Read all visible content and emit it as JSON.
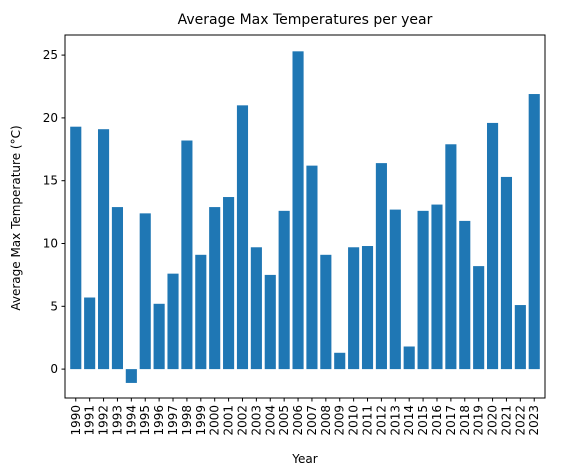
{
  "chart_data": {
    "type": "bar",
    "title": "Average Max Temperatures per year",
    "xlabel": "Year",
    "ylabel": "Average Max Temperature (°C)",
    "ylim": [
      -2.3,
      26.6
    ],
    "yticks": [
      0,
      5,
      10,
      15,
      20,
      25
    ],
    "grid": false,
    "bar_color": "#1f77b4",
    "categories": [
      "1990",
      "1991",
      "1992",
      "1993",
      "1994",
      "1995",
      "1996",
      "1997",
      "1998",
      "1999",
      "2000",
      "2001",
      "2002",
      "2003",
      "2004",
      "2005",
      "2006",
      "2007",
      "2008",
      "2009",
      "2010",
      "2011",
      "2012",
      "2013",
      "2014",
      "2015",
      "2016",
      "2017",
      "2018",
      "2019",
      "2020",
      "2021",
      "2022",
      "2023"
    ],
    "values": [
      19.3,
      5.7,
      19.1,
      12.9,
      -1.1,
      12.4,
      5.2,
      7.6,
      18.2,
      9.1,
      12.9,
      13.7,
      21.0,
      9.7,
      7.5,
      12.6,
      25.3,
      16.2,
      9.1,
      1.3,
      9.7,
      9.8,
      16.4,
      12.7,
      1.8,
      12.6,
      13.1,
      17.9,
      11.8,
      8.2,
      19.6,
      15.3,
      5.1,
      21.9
    ]
  }
}
